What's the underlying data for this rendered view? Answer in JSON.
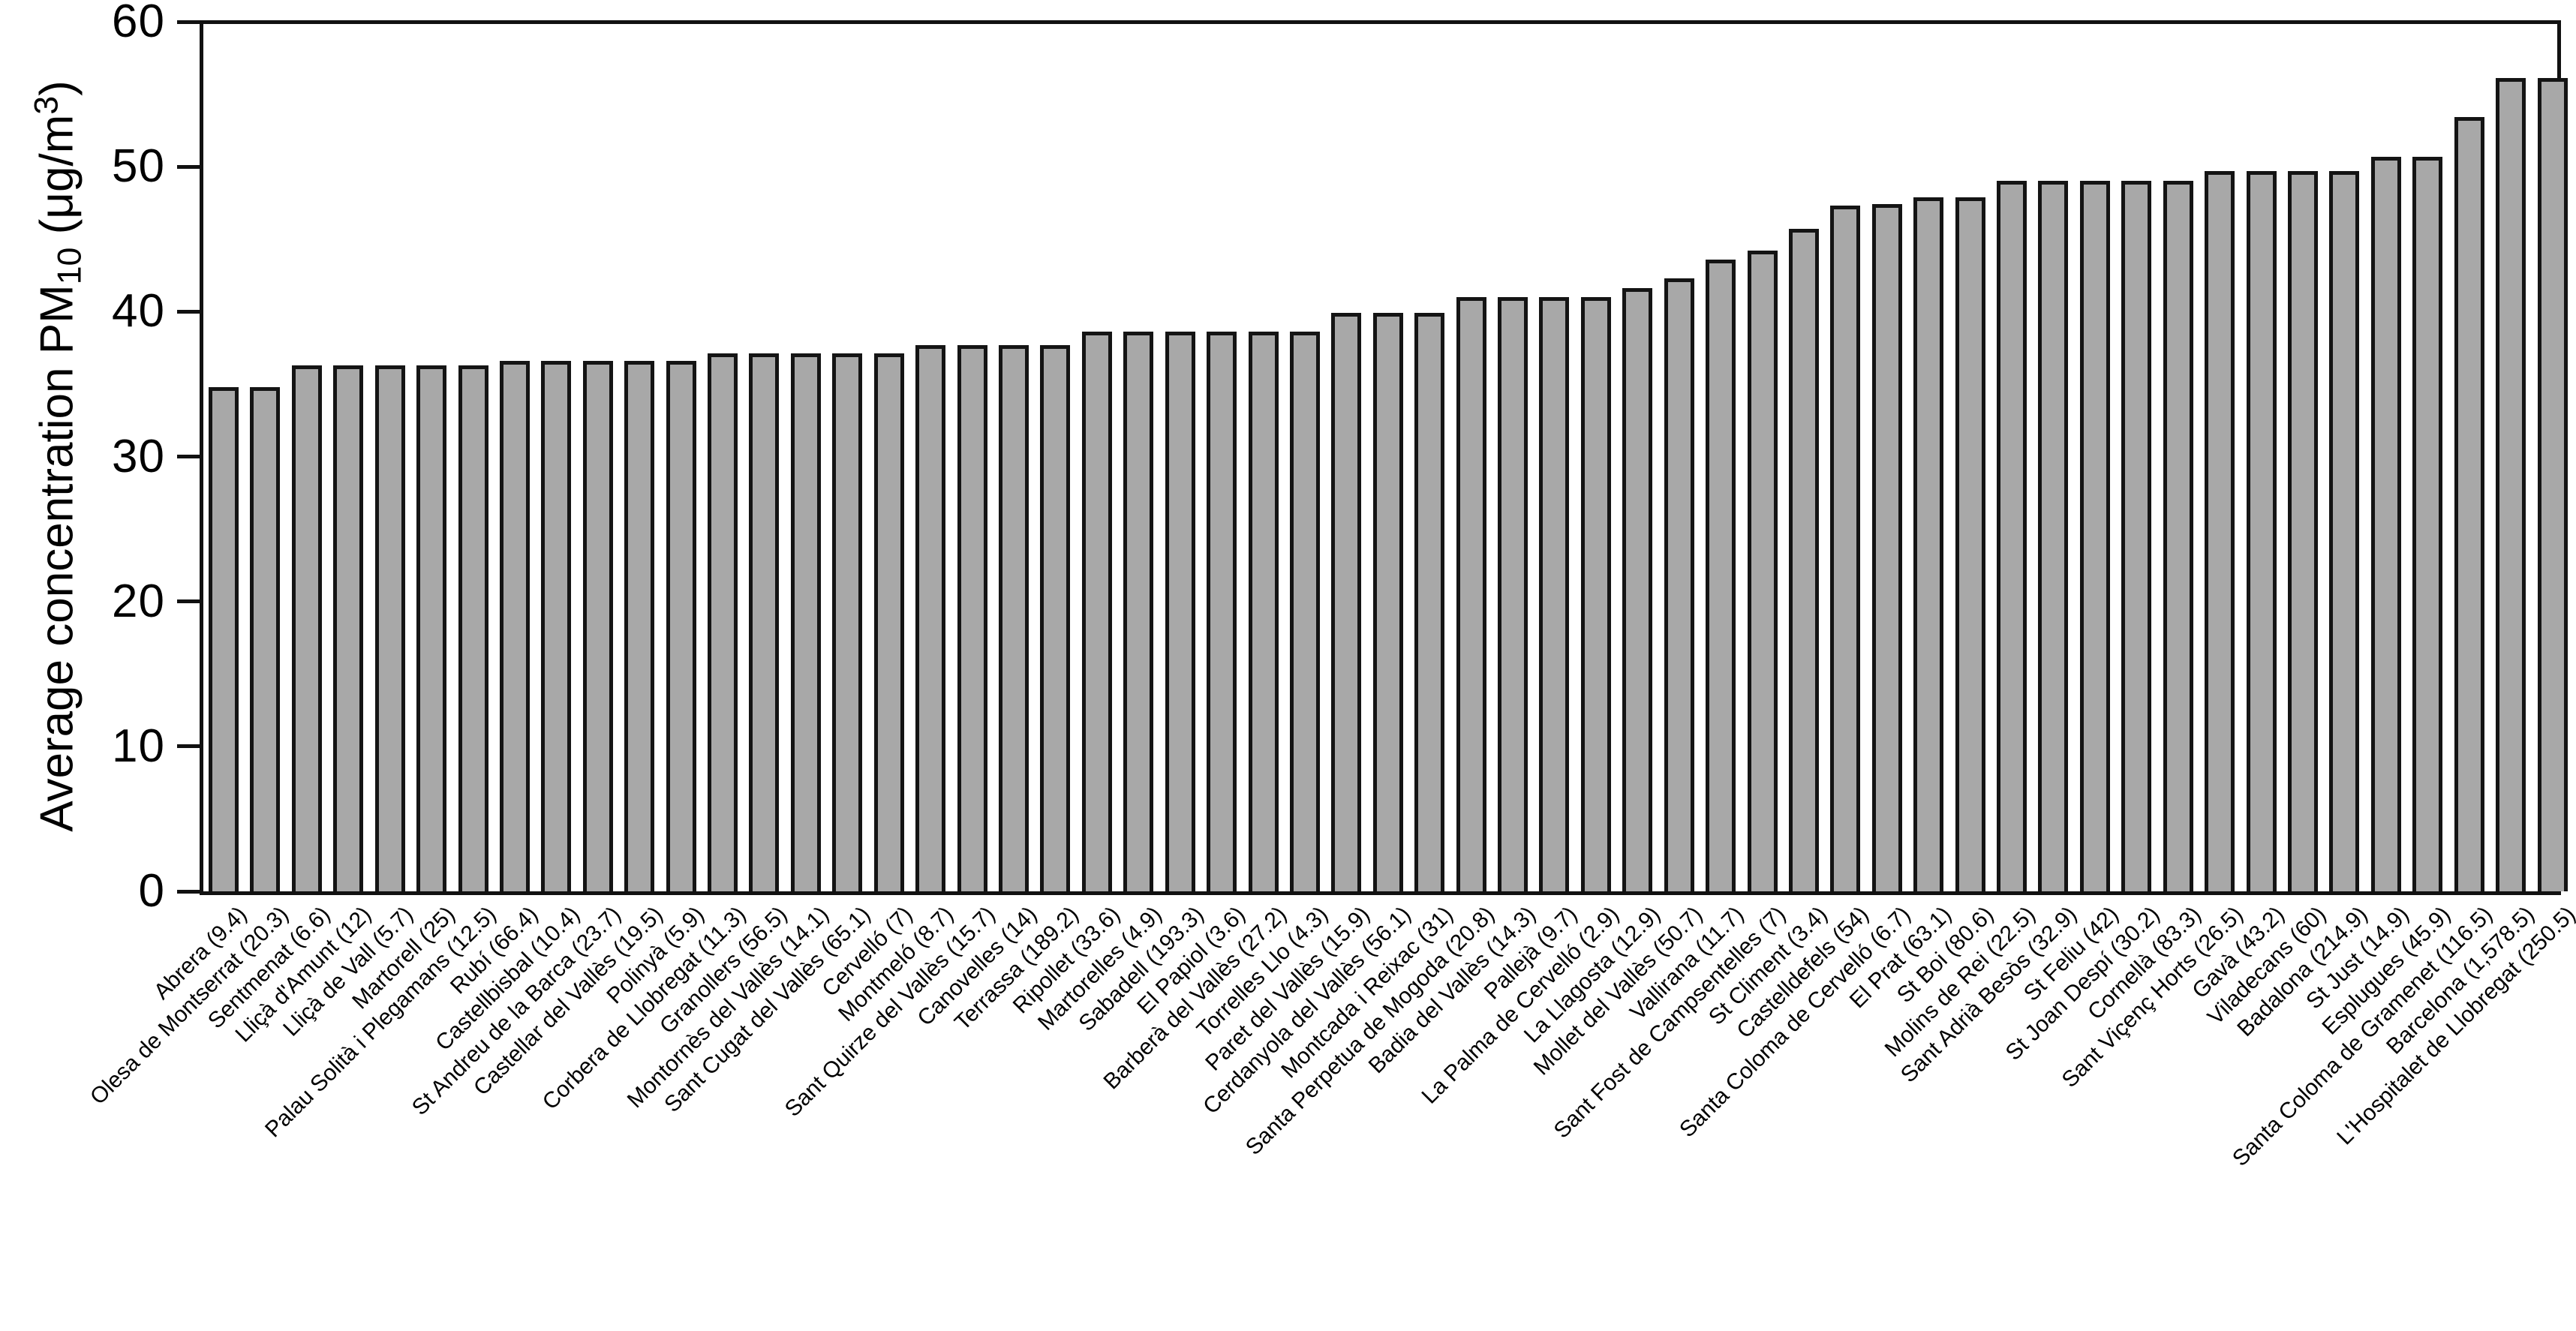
{
  "figure": {
    "background": "#ffffff",
    "axis_color": "#111111",
    "ylabel_parts": {
      "prefix": "Average concentration PM",
      "sub": "10",
      "mid": " (μg/m",
      "sup": "3",
      "suffix": ")"
    }
  },
  "chart_data": {
    "type": "bar",
    "title": "",
    "xlabel": "",
    "ylabel": "Average concentration PM10 (μg/m3)",
    "ylim": [
      0,
      60
    ],
    "yticks": [
      0,
      10,
      20,
      30,
      40,
      50,
      60
    ],
    "grid": false,
    "legend": null,
    "bar_color": "#a8a8a8",
    "bar_border_color": "#141414",
    "categories": [
      "Abrera (9.4)",
      "Olesa de Montserrat (20.3)",
      "Sentmenat (6.6)",
      "Lliçà d'Amunt (12)",
      "Lliçà de Vall (5.7)",
      "Martorell (25)",
      "Palau Solità i Plegamans (12.5)",
      "Rubí (66.4)",
      "Castellbisbal (10.4)",
      "St Andreu de la Barca (23.7)",
      "Castellar del Vallès (19.5)",
      "Polinyà (5.9)",
      "Corbera de Llobregat (11.3)",
      "Granollers (56.5)",
      "Montornès del Vallès (14.1)",
      "Sant Cugat del Vallès (65.1)",
      "Cervelló (7)",
      "Montmeló (8.7)",
      "Sant Quirze del Vallès (15.7)",
      "Canovelles (14)",
      "Terrassa (189.2)",
      "Ripollet (33.6)",
      "Martorelles (4.9)",
      "Sabadell (193.3)",
      "El Papiol (3.6)",
      "Barberà del Vallès (27.2)",
      "Torrelles Llo (4.3)",
      "Paret del Vallès (15.9)",
      "Cerdanyola del Vallès (56.1)",
      "Montcada i Reixac (31)",
      "Santa Perpetua de Mogoda (20.8)",
      "Badia del Vallès (14.3)",
      "Pallejà (9.7)",
      "La Palma de Cervelló (2.9)",
      "La Llagosta (12.9)",
      "Mollet del Vallès (50.7)",
      "Vallirana (11.7)",
      "Sant Fost de Campsentelles (7)",
      "St Climent (3.4)",
      "Castelldefels (54)",
      "Santa Coloma de Cervelló (6.7)",
      "El Prat (63.1)",
      "St Boi (80.6)",
      "Molins de Rei (22.5)",
      "Sant Adrià Besòs (32.9)",
      "St Feliu (42)",
      "St Joan Despí (30.2)",
      "Cornellà (83.3)",
      "Sant Viçenç Horts (26.5)",
      "Gavà (43.2)",
      "Viladecans (60)",
      "Badalona (214.9)",
      "St Just (14.9)",
      "Esplugues (45.9)",
      "Santa Coloma de Gramenet (116.5)",
      "Barcelona (1,578.5)",
      "L'Hospitalet de Llobregat (250.5)"
    ],
    "values": [
      34.8,
      34.8,
      36.3,
      36.3,
      36.3,
      36.3,
      36.3,
      36.6,
      36.6,
      36.6,
      36.6,
      36.6,
      37.1,
      37.1,
      37.1,
      37.1,
      37.1,
      37.7,
      37.7,
      37.7,
      37.7,
      38.6,
      38.6,
      38.6,
      38.6,
      38.6,
      38.6,
      39.9,
      39.9,
      39.9,
      41.0,
      41.0,
      41.0,
      41.0,
      41.6,
      42.3,
      43.6,
      44.2,
      45.7,
      47.3,
      47.4,
      47.9,
      47.9,
      49.0,
      49.0,
      49.0,
      49.0,
      49.0,
      49.7,
      49.7,
      49.7,
      49.7,
      50.7,
      50.7,
      53.4,
      56.1,
      56.1
    ]
  }
}
